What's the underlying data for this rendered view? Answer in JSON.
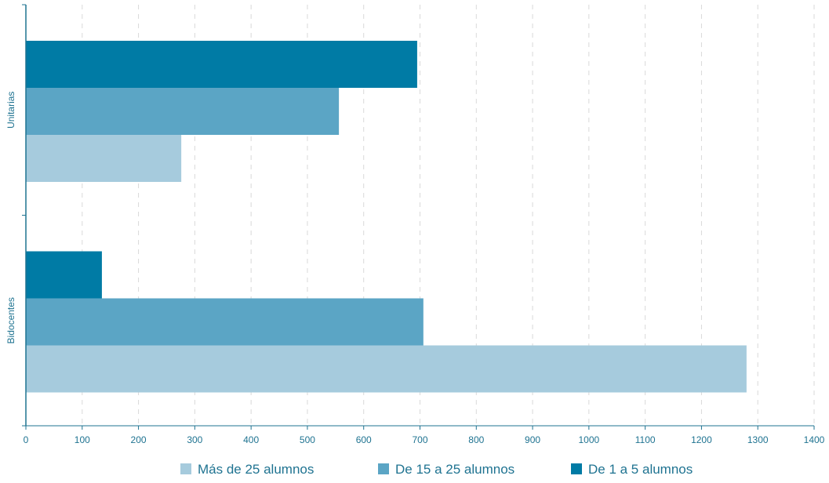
{
  "chart_data": {
    "type": "bar",
    "orientation": "horizontal",
    "categories": [
      "Unitarias",
      "Bidocentes"
    ],
    "series": [
      {
        "name": "De 1 a 5 alumnos",
        "color": "#007ba5",
        "values": [
          695,
          135
        ]
      },
      {
        "name": "De 15 a 25 alumnos",
        "color": "#5ba5c5",
        "values": [
          556,
          706
        ]
      },
      {
        "name": "Más de 25 alumnos",
        "color": "#a6cbdd",
        "values": [
          276,
          1280
        ]
      }
    ],
    "xlim": [
      0,
      1400
    ],
    "xticks": [
      "0",
      "100",
      "200",
      "300",
      "400",
      "500",
      "600",
      "700",
      "800",
      "900",
      "1000",
      "1100",
      "1200",
      "1300",
      "1400"
    ],
    "grid": "vertical dashed",
    "legend": {
      "placement": "bottom",
      "items": [
        {
          "label": "Más de 25 alumnos",
          "color": "#a6cbdd"
        },
        {
          "label": "De 15 a 25 alumnos",
          "color": "#5ba5c5"
        },
        {
          "label": "De 1 a 5 alumnos",
          "color": "#007ba5"
        }
      ]
    },
    "axis_color": "#1f7391",
    "grid_color": "#d9d9d9"
  }
}
